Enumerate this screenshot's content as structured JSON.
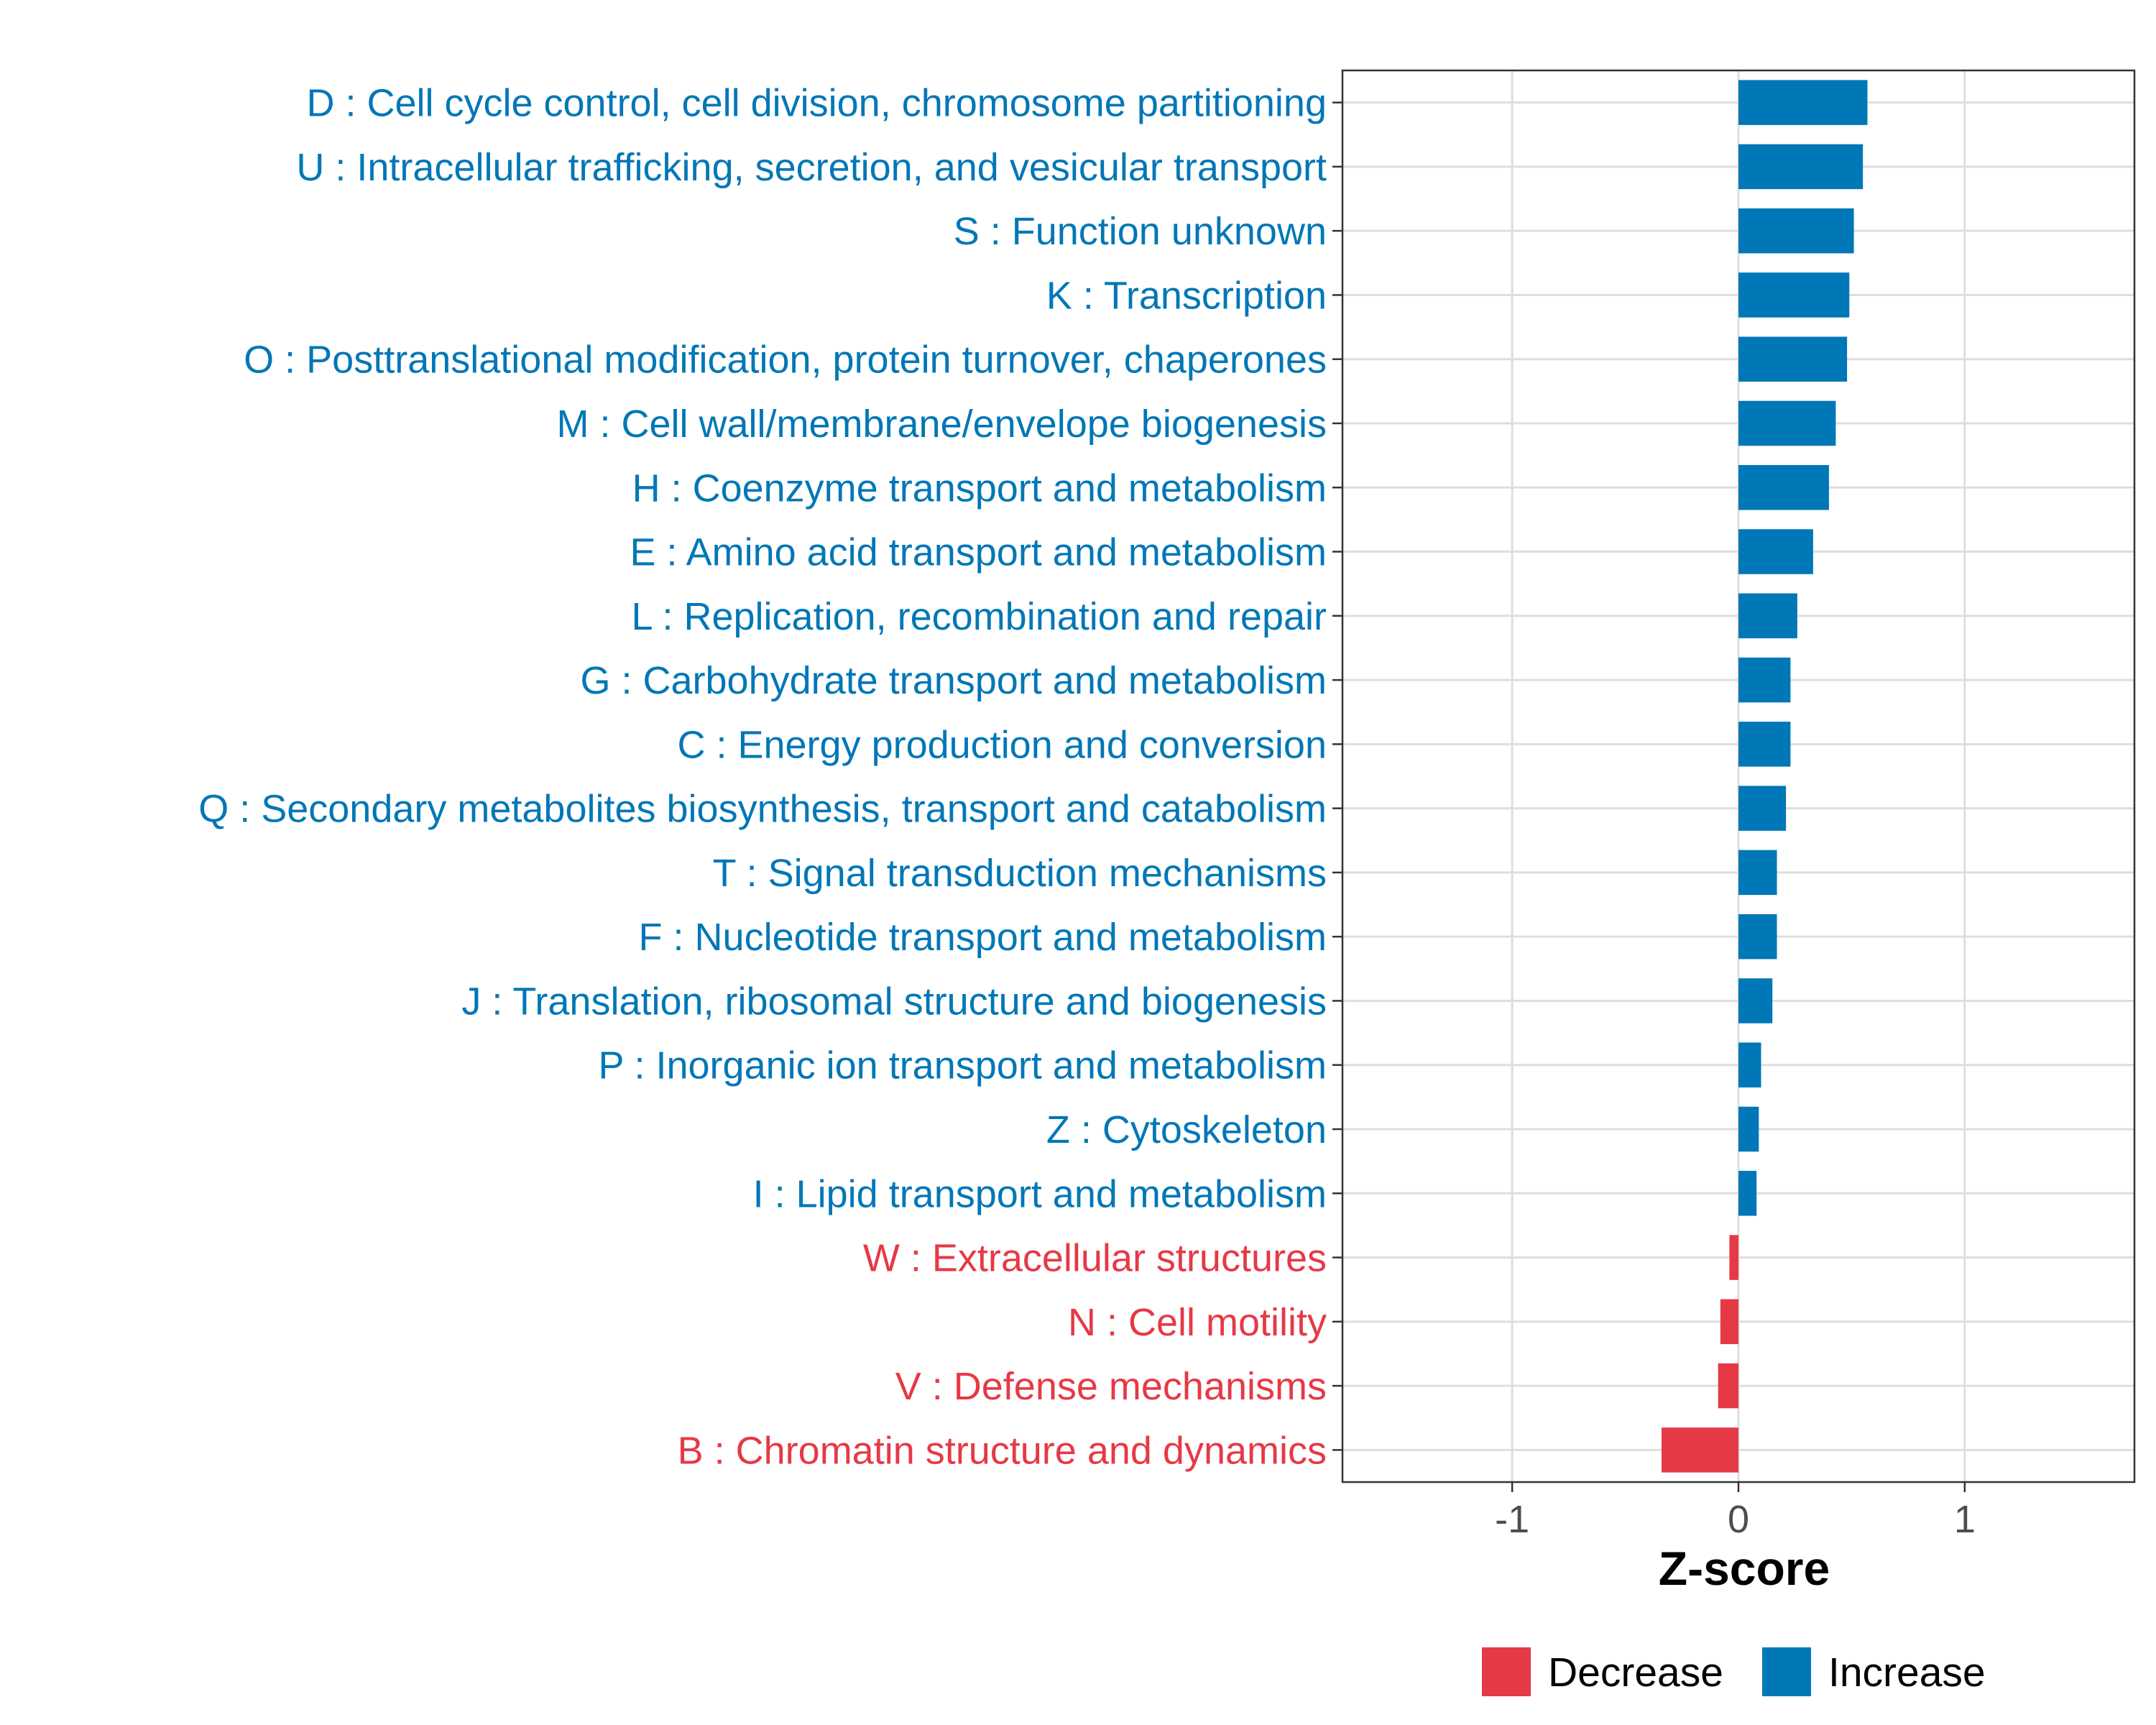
{
  "chart_data": {
    "type": "bar",
    "orientation": "horizontal",
    "title": "",
    "xlabel": "Z-score",
    "ylabel": "",
    "xlim": [
      -1.75,
      1.75
    ],
    "xticks": [
      -1,
      0,
      1
    ],
    "xtick_labels": [
      "-1",
      "0",
      "1"
    ],
    "grid": true,
    "legend_position": "bottom",
    "categories": [
      "D : Cell cycle control, cell division, chromosome partitioning",
      "U : Intracellular trafficking, secretion, and vesicular transport",
      "S : Function unknown",
      "K : Transcription",
      "O : Posttranslational modification, protein turnover, chaperones",
      "M : Cell wall/membrane/envelope biogenesis",
      "H : Coenzyme transport and metabolism",
      "E : Amino acid transport and metabolism",
      "L : Replication, recombination and repair",
      "G : Carbohydrate transport and metabolism",
      "C : Energy production and conversion",
      "Q : Secondary metabolites biosynthesis, transport and catabolism",
      "T : Signal transduction mechanisms",
      "F : Nucleotide transport and metabolism",
      "J : Translation, ribosomal structure and biogenesis",
      "P : Inorganic ion transport and metabolism",
      "Z : Cytoskeleton",
      "I : Lipid transport and metabolism",
      "W : Extracellular structures",
      "N : Cell motility",
      "V : Defense mechanisms",
      "B : Chromatin structure and dynamics"
    ],
    "values": [
      0.57,
      0.55,
      0.51,
      0.49,
      0.48,
      0.43,
      0.4,
      0.33,
      0.26,
      0.23,
      0.23,
      0.21,
      0.17,
      0.17,
      0.15,
      0.1,
      0.09,
      0.08,
      -0.04,
      -0.08,
      -0.09,
      -0.34
    ],
    "groups": [
      "Increase",
      "Increase",
      "Increase",
      "Increase",
      "Increase",
      "Increase",
      "Increase",
      "Increase",
      "Increase",
      "Increase",
      "Increase",
      "Increase",
      "Increase",
      "Increase",
      "Increase",
      "Increase",
      "Increase",
      "Increase",
      "Decrease",
      "Decrease",
      "Decrease",
      "Decrease"
    ],
    "legend": [
      {
        "name": "Decrease",
        "color": "#E63946"
      },
      {
        "name": "Increase",
        "color": "#0077B6"
      }
    ],
    "colors": {
      "Increase": "#0077B6",
      "Decrease": "#E63946",
      "grid": "#DEDEDE",
      "panel_border": "#333333"
    }
  }
}
